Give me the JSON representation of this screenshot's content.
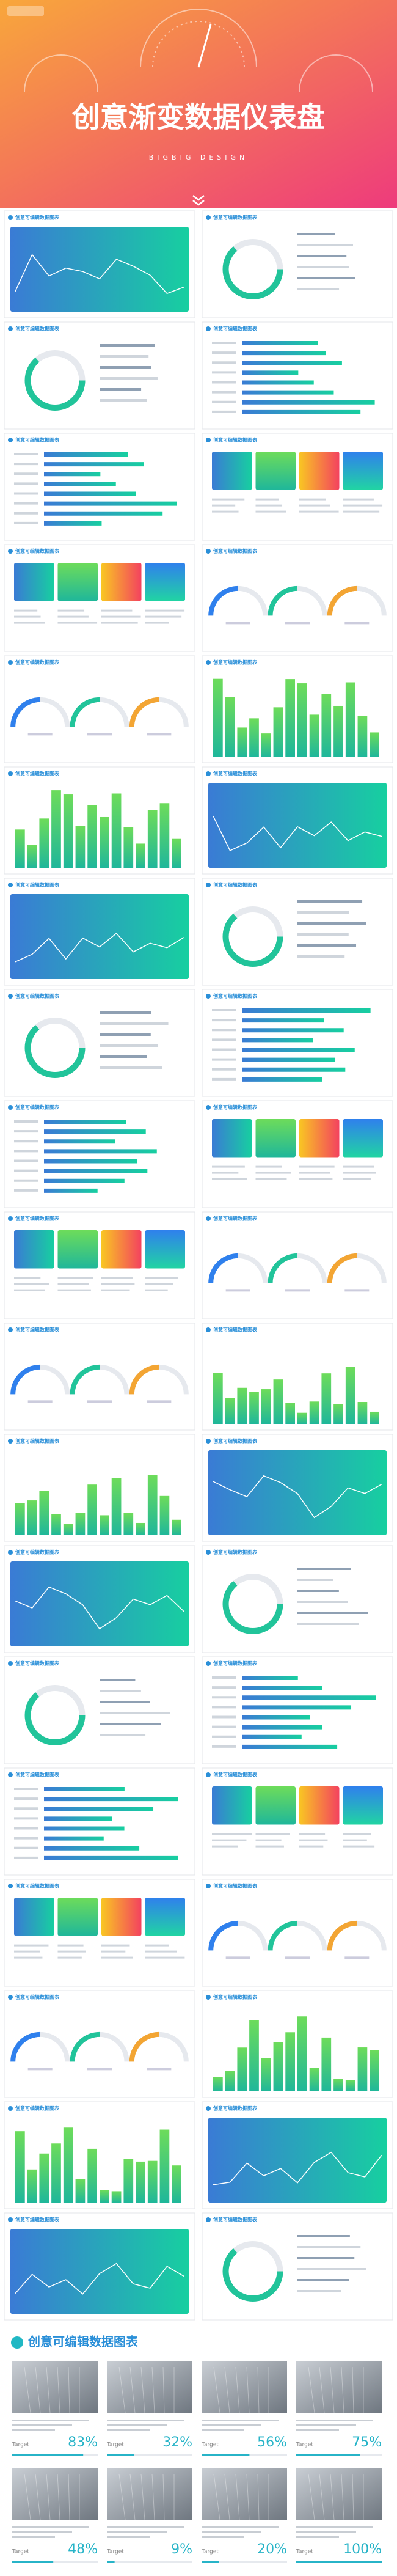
{
  "header": {
    "title": "创意渐变数据仪表盘",
    "subtitle": "BIGBIG DESIGN"
  },
  "slides": [
    {
      "title": "创意可编辑数据图表"
    },
    {
      "title": "创意可编辑数据图表"
    },
    {
      "title": "创意可编辑数据图表"
    },
    {
      "title": "创意可编辑数据图表"
    },
    {
      "title": "创意可编辑数据图表"
    },
    {
      "title": "创意可编辑数据图表"
    },
    {
      "title": "创意可编辑数据图表"
    },
    {
      "title": "创意可编辑数据图表"
    },
    {
      "title": "创意可编辑数据图表"
    },
    {
      "title": "创意可编辑数据图表"
    },
    {
      "title": "创意可编辑数据图表"
    },
    {
      "title": "创意可编辑数据图表"
    },
    {
      "title": "创意可编辑数据图表"
    },
    {
      "title": "创意可编辑数据图表"
    },
    {
      "title": "创意可编辑数据图表"
    },
    {
      "title": "创意可编辑数据图表"
    },
    {
      "title": "创意可编辑数据图表"
    },
    {
      "title": "创意可编辑数据图表"
    },
    {
      "title": "创意可编辑数据图表"
    },
    {
      "title": "创意可编辑数据图表"
    },
    {
      "title": "创意可编辑数据图表"
    },
    {
      "title": "创意可编辑数据图表"
    },
    {
      "title": "创意可编辑数据图表"
    },
    {
      "title": "创意可编辑数据图表"
    },
    {
      "title": "创意可编辑数据图表"
    },
    {
      "title": "创意可编辑数据图表"
    },
    {
      "title": "创意可编辑数据图表"
    },
    {
      "title": "创意可编辑数据图表"
    },
    {
      "title": "创意可编辑数据图表"
    },
    {
      "title": "创意可编辑数据图表"
    },
    {
      "title": "创意可编辑数据图表"
    },
    {
      "title": "创意可编辑数据图表"
    },
    {
      "title": "创意可编辑数据图表"
    },
    {
      "title": "创意可编辑数据图表"
    },
    {
      "title": "创意可编辑数据图表"
    },
    {
      "title": "创意可编辑数据图表"
    },
    {
      "title": "创意可编辑数据图表"
    },
    {
      "title": "创意可编辑数据图表"
    }
  ],
  "gallery": {
    "title": "创意可编辑数据图表",
    "label": "Target",
    "values": [
      83,
      32,
      56,
      75,
      48,
      9,
      20,
      100
    ],
    "value_labels": [
      "83%",
      "32%",
      "56%",
      "75%",
      "48%",
      "9%",
      "20%",
      "100%"
    ]
  }
}
